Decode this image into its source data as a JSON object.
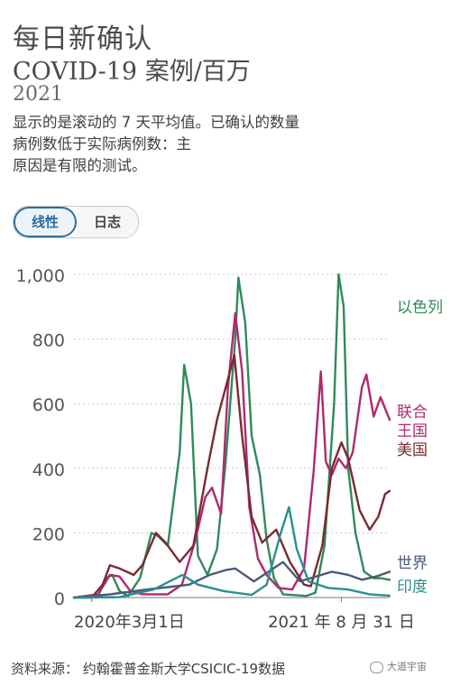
{
  "header": {
    "title_line1": "每日新确认",
    "title_line2": "COVID-19 案例/百万",
    "year": "2021"
  },
  "description": [
    "显示的是滚动的 7 天平均值。已确认的数量",
    "病例数低于实际病例数：主",
    "原因是有限的测试。"
  ],
  "toggle": {
    "linear_label": "线性",
    "log_label": "日志",
    "selected": "linear"
  },
  "footer": {
    "source": "资料来源：  约翰霍普金斯大学CSICIC-19数据",
    "watermark": "大道宇宙"
  },
  "chart_data": {
    "type": "line",
    "title": "每日新确认 COVID-19 案例/百万",
    "ylim": [
      0,
      1000
    ],
    "yticks": [
      0,
      200,
      400,
      600,
      800,
      1000
    ],
    "ytick_labels": [
      "0",
      "200",
      "400",
      "600",
      "800",
      "1,000"
    ],
    "xlim": [
      "2020-01-22",
      "2021-12-15"
    ],
    "xticks": [
      {
        "date": "2020-03-01",
        "label": "2020年3月1日"
      },
      {
        "date": "2021-08-31",
        "label": "2021 年 8 月 31 日"
      }
    ],
    "grid": "horizontal dotted",
    "legend": "direct labels at right end of lines",
    "series": [
      {
        "name": "以色列",
        "label_lines": [
          "以色列"
        ],
        "color": "#2f8a5a",
        "points": [
          [
            "2020-01-22",
            0
          ],
          [
            "2020-03-15",
            5
          ],
          [
            "2020-04-01",
            60
          ],
          [
            "2020-04-15",
            70
          ],
          [
            "2020-05-01",
            20
          ],
          [
            "2020-05-20",
            5
          ],
          [
            "2020-06-15",
            60
          ],
          [
            "2020-07-10",
            200
          ],
          [
            "2020-07-25",
            190
          ],
          [
            "2020-08-15",
            160
          ],
          [
            "2020-09-10",
            450
          ],
          [
            "2020-09-20",
            720
          ],
          [
            "2020-10-05",
            600
          ],
          [
            "2020-10-20",
            130
          ],
          [
            "2020-11-10",
            70
          ],
          [
            "2020-12-01",
            150
          ],
          [
            "2020-12-20",
            420
          ],
          [
            "2021-01-10",
            800
          ],
          [
            "2021-01-17",
            990
          ],
          [
            "2021-02-01",
            850
          ],
          [
            "2021-02-15",
            500
          ],
          [
            "2021-03-05",
            380
          ],
          [
            "2021-03-20",
            180
          ],
          [
            "2021-04-05",
            60
          ],
          [
            "2021-04-25",
            10
          ],
          [
            "2021-06-15",
            5
          ],
          [
            "2021-07-05",
            15
          ],
          [
            "2021-07-25",
            160
          ],
          [
            "2021-08-15",
            600
          ],
          [
            "2021-08-25",
            1000
          ],
          [
            "2021-09-05",
            900
          ],
          [
            "2021-09-15",
            400
          ],
          [
            "2021-10-01",
            200
          ],
          [
            "2021-10-20",
            80
          ],
          [
            "2021-11-10",
            60
          ],
          [
            "2021-11-25",
            60
          ],
          [
            "2021-12-15",
            55
          ]
        ]
      },
      {
        "name": "联合王国",
        "label_lines": [
          "联合",
          "王国"
        ],
        "color": "#b0286e",
        "points": [
          [
            "2020-01-22",
            0
          ],
          [
            "2020-03-15",
            10
          ],
          [
            "2020-04-10",
            70
          ],
          [
            "2020-05-01",
            65
          ],
          [
            "2020-05-25",
            20
          ],
          [
            "2020-06-20",
            10
          ],
          [
            "2020-08-15",
            10
          ],
          [
            "2020-09-15",
            40
          ],
          [
            "2020-10-15",
            180
          ],
          [
            "2020-11-05",
            310
          ],
          [
            "2020-11-20",
            340
          ],
          [
            "2020-12-10",
            260
          ],
          [
            "2020-12-25",
            650
          ],
          [
            "2021-01-10",
            880
          ],
          [
            "2021-01-25",
            700
          ],
          [
            "2021-02-10",
            280
          ],
          [
            "2021-03-01",
            120
          ],
          [
            "2021-03-20",
            70
          ],
          [
            "2021-04-15",
            30
          ],
          [
            "2021-05-15",
            25
          ],
          [
            "2021-06-10",
            90
          ],
          [
            "2021-07-01",
            390
          ],
          [
            "2021-07-17",
            700
          ],
          [
            "2021-07-28",
            420
          ],
          [
            "2021-08-10",
            380
          ],
          [
            "2021-08-25",
            430
          ],
          [
            "2021-09-10",
            400
          ],
          [
            "2021-09-25",
            450
          ],
          [
            "2021-10-15",
            650
          ],
          [
            "2021-10-25",
            690
          ],
          [
            "2021-11-10",
            560
          ],
          [
            "2021-11-25",
            620
          ],
          [
            "2021-12-15",
            550
          ]
        ]
      },
      {
        "name": "美国",
        "label_lines": [
          "美国"
        ],
        "color": "#7a2a32",
        "points": [
          [
            "2020-01-22",
            0
          ],
          [
            "2020-03-01",
            0
          ],
          [
            "2020-03-25",
            40
          ],
          [
            "2020-04-10",
            100
          ],
          [
            "2020-05-01",
            90
          ],
          [
            "2020-06-01",
            70
          ],
          [
            "2020-06-20",
            100
          ],
          [
            "2020-07-20",
            200
          ],
          [
            "2020-08-10",
            170
          ],
          [
            "2020-09-10",
            110
          ],
          [
            "2020-10-10",
            160
          ],
          [
            "2020-11-10",
            400
          ],
          [
            "2020-12-01",
            550
          ],
          [
            "2020-12-20",
            650
          ],
          [
            "2021-01-08",
            750
          ],
          [
            "2021-01-25",
            500
          ],
          [
            "2021-02-15",
            250
          ],
          [
            "2021-03-10",
            170
          ],
          [
            "2021-04-10",
            210
          ],
          [
            "2021-05-10",
            110
          ],
          [
            "2021-06-10",
            40
          ],
          [
            "2021-06-25",
            35
          ],
          [
            "2021-07-20",
            160
          ],
          [
            "2021-08-10",
            400
          ],
          [
            "2021-08-31",
            480
          ],
          [
            "2021-09-15",
            430
          ],
          [
            "2021-10-10",
            270
          ],
          [
            "2021-11-01",
            210
          ],
          [
            "2021-11-20",
            250
          ],
          [
            "2021-12-05",
            320
          ],
          [
            "2021-12-15",
            330
          ]
        ]
      },
      {
        "name": "世界",
        "label_lines": [
          "世界"
        ],
        "color": "#4a5a78",
        "points": [
          [
            "2020-01-22",
            0
          ],
          [
            "2020-04-10",
            10
          ],
          [
            "2020-07-01",
            25
          ],
          [
            "2020-08-15",
            32
          ],
          [
            "2020-10-01",
            40
          ],
          [
            "2020-11-15",
            70
          ],
          [
            "2020-12-20",
            85
          ],
          [
            "2021-01-10",
            90
          ],
          [
            "2021-02-20",
            50
          ],
          [
            "2021-04-25",
            110
          ],
          [
            "2021-06-01",
            50
          ],
          [
            "2021-08-10",
            80
          ],
          [
            "2021-09-15",
            70
          ],
          [
            "2021-10-15",
            55
          ],
          [
            "2021-11-15",
            65
          ],
          [
            "2021-12-15",
            80
          ]
        ]
      },
      {
        "name": "印度",
        "label_lines": [
          "印度"
        ],
        "color": "#2b8f8f",
        "points": [
          [
            "2020-01-22",
            0
          ],
          [
            "2020-05-01",
            1
          ],
          [
            "2020-07-15",
            25
          ],
          [
            "2020-09-16",
            70
          ],
          [
            "2020-10-20",
            40
          ],
          [
            "2020-12-15",
            20
          ],
          [
            "2021-02-15",
            8
          ],
          [
            "2021-03-20",
            40
          ],
          [
            "2021-04-20",
            200
          ],
          [
            "2021-05-08",
            280
          ],
          [
            "2021-05-25",
            150
          ],
          [
            "2021-06-20",
            50
          ],
          [
            "2021-08-01",
            30
          ],
          [
            "2021-09-15",
            25
          ],
          [
            "2021-11-01",
            10
          ],
          [
            "2021-12-15",
            6
          ]
        ]
      }
    ]
  }
}
